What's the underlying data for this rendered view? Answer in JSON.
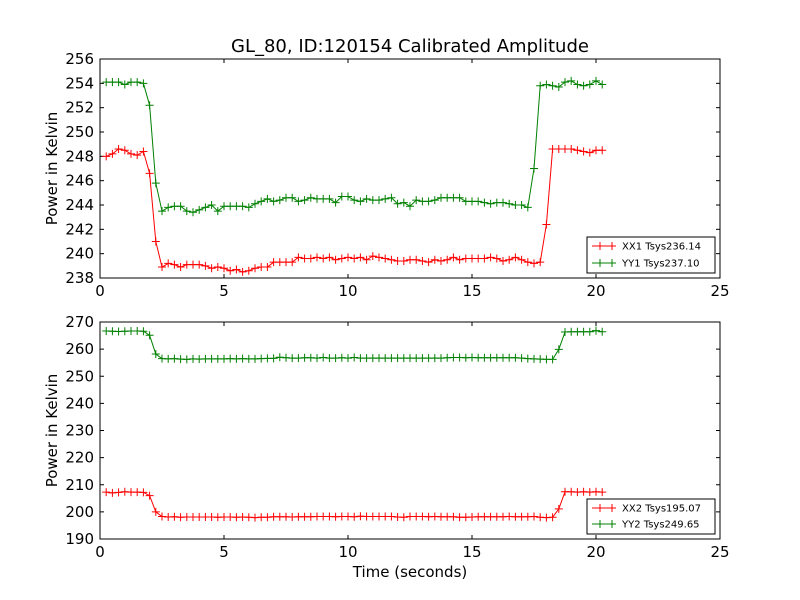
{
  "chart_data": [
    {
      "type": "line",
      "title": "GL_80, ID:120154 Calibrated Amplitude",
      "xlabel": "",
      "ylabel": "Power in Kelvin",
      "xlim": [
        0,
        25
      ],
      "ylim": [
        238,
        256
      ],
      "xticks": [
        0,
        5,
        10,
        15,
        20,
        25
      ],
      "yticks": [
        238,
        240,
        242,
        244,
        246,
        248,
        250,
        252,
        254,
        256
      ],
      "grid": false,
      "legend_position": "lower-right",
      "series": [
        {
          "name": "XX1 Tsys236.14",
          "color": "#ff0000",
          "x": [
            0.25,
            0.5,
            0.75,
            1.0,
            1.25,
            1.5,
            1.75,
            2.0,
            2.25,
            2.5,
            2.75,
            3.0,
            3.25,
            3.5,
            3.75,
            4.0,
            4.25,
            4.5,
            4.75,
            5.0,
            5.25,
            5.5,
            5.75,
            6.0,
            6.25,
            6.5,
            6.75,
            7.0,
            7.25,
            7.5,
            7.75,
            8.0,
            8.25,
            8.5,
            8.75,
            9.0,
            9.25,
            9.5,
            9.75,
            10.0,
            10.25,
            10.5,
            10.75,
            11.0,
            11.25,
            11.5,
            11.75,
            12.0,
            12.25,
            12.5,
            12.75,
            13.0,
            13.25,
            13.5,
            13.75,
            14.0,
            14.25,
            14.5,
            14.75,
            15.0,
            15.25,
            15.5,
            15.75,
            16.0,
            16.25,
            16.5,
            16.75,
            17.0,
            17.25,
            17.5,
            17.75,
            18.0,
            18.25,
            18.5,
            18.75,
            19.0,
            19.25,
            19.5,
            19.75,
            20.0,
            20.25
          ],
          "y": [
            248.0,
            248.2,
            248.6,
            248.5,
            248.2,
            248.1,
            248.4,
            246.6,
            241.0,
            238.9,
            239.2,
            239.1,
            238.9,
            239.1,
            239.1,
            239.1,
            239.0,
            238.8,
            238.9,
            238.8,
            238.6,
            238.7,
            238.5,
            238.6,
            238.8,
            238.9,
            238.9,
            239.3,
            239.3,
            239.3,
            239.3,
            239.7,
            239.6,
            239.6,
            239.7,
            239.6,
            239.7,
            239.5,
            239.6,
            239.7,
            239.6,
            239.7,
            239.5,
            239.8,
            239.7,
            239.6,
            239.5,
            239.4,
            239.4,
            239.5,
            239.5,
            239.4,
            239.3,
            239.5,
            239.4,
            239.5,
            239.7,
            239.5,
            239.6,
            239.6,
            239.6,
            239.6,
            239.7,
            239.6,
            239.4,
            239.5,
            239.7,
            239.5,
            239.3,
            239.2,
            239.3,
            242.4,
            248.6,
            248.6,
            248.6,
            248.6,
            248.5,
            248.4,
            248.3,
            248.5,
            248.5
          ]
        },
        {
          "name": "YY1 Tsys237.10",
          "color": "#008000",
          "x": [
            0.25,
            0.5,
            0.75,
            1.0,
            1.25,
            1.5,
            1.75,
            2.0,
            2.25,
            2.5,
            2.75,
            3.0,
            3.25,
            3.5,
            3.75,
            4.0,
            4.25,
            4.5,
            4.75,
            5.0,
            5.25,
            5.5,
            5.75,
            6.0,
            6.25,
            6.5,
            6.75,
            7.0,
            7.25,
            7.5,
            7.75,
            8.0,
            8.25,
            8.5,
            8.75,
            9.0,
            9.25,
            9.5,
            9.75,
            10.0,
            10.25,
            10.5,
            10.75,
            11.0,
            11.25,
            11.5,
            11.75,
            12.0,
            12.25,
            12.5,
            12.75,
            13.0,
            13.25,
            13.5,
            13.75,
            14.0,
            14.25,
            14.5,
            14.75,
            15.0,
            15.25,
            15.5,
            15.75,
            16.0,
            16.25,
            16.5,
            16.75,
            17.0,
            17.25,
            17.5,
            17.75,
            18.0,
            18.25,
            18.5,
            18.75,
            19.0,
            19.25,
            19.5,
            19.75,
            20.0,
            20.25
          ],
          "y": [
            254.1,
            254.1,
            254.1,
            253.9,
            254.1,
            254.1,
            254.0,
            252.2,
            245.8,
            243.5,
            243.8,
            243.9,
            243.9,
            243.5,
            243.4,
            243.6,
            243.8,
            244.0,
            243.5,
            243.9,
            243.9,
            243.9,
            243.9,
            243.8,
            244.1,
            244.3,
            244.5,
            244.3,
            244.4,
            244.6,
            244.6,
            244.3,
            244.4,
            244.6,
            244.5,
            244.5,
            244.5,
            244.2,
            244.7,
            244.7,
            244.4,
            244.3,
            244.5,
            244.4,
            244.4,
            244.5,
            244.6,
            244.1,
            244.2,
            243.9,
            244.4,
            244.3,
            244.3,
            244.4,
            244.6,
            244.6,
            244.6,
            244.6,
            244.3,
            244.3,
            244.3,
            244.2,
            244.1,
            244.2,
            244.2,
            244.1,
            244.0,
            244.0,
            243.8,
            247.0,
            253.8,
            253.9,
            253.8,
            253.7,
            254.1,
            254.2,
            253.9,
            253.8,
            253.9,
            254.2,
            253.9
          ]
        }
      ]
    },
    {
      "type": "line",
      "title": "",
      "xlabel": "Time (seconds)",
      "ylabel": "Power in Kelvin",
      "xlim": [
        0,
        25
      ],
      "ylim": [
        190,
        270
      ],
      "xticks": [
        0,
        5,
        10,
        15,
        20,
        25
      ],
      "yticks": [
        190,
        200,
        210,
        220,
        230,
        240,
        250,
        260,
        270
      ],
      "grid": false,
      "legend_position": "lower-right",
      "series": [
        {
          "name": "XX2 Tsys195.07",
          "color": "#ff0000",
          "x": [
            0.25,
            0.5,
            0.75,
            1.0,
            1.25,
            1.5,
            1.75,
            2.0,
            2.25,
            2.5,
            2.75,
            3.0,
            3.25,
            3.5,
            3.75,
            4.0,
            4.25,
            4.5,
            4.75,
            5.0,
            5.25,
            5.5,
            5.75,
            6.0,
            6.25,
            6.5,
            6.75,
            7.0,
            7.25,
            7.5,
            7.75,
            8.0,
            8.25,
            8.5,
            8.75,
            9.0,
            9.25,
            9.5,
            9.75,
            10.0,
            10.25,
            10.5,
            10.75,
            11.0,
            11.25,
            11.5,
            11.75,
            12.0,
            12.25,
            12.5,
            12.75,
            13.0,
            13.25,
            13.5,
            13.75,
            14.0,
            14.25,
            14.5,
            14.75,
            15.0,
            15.25,
            15.5,
            15.75,
            16.0,
            16.25,
            16.5,
            16.75,
            17.0,
            17.25,
            17.5,
            17.75,
            18.0,
            18.25,
            18.5,
            18.75,
            19.0,
            19.25,
            19.5,
            19.75,
            20.0,
            20.25
          ],
          "y": [
            207.3,
            207.0,
            207.2,
            207.4,
            207.3,
            207.3,
            207.2,
            206.0,
            200.0,
            198.3,
            198.1,
            198.2,
            198.0,
            198.1,
            198.1,
            198.1,
            198.1,
            198.1,
            198.0,
            198.1,
            198.1,
            198.0,
            198.1,
            198.0,
            197.9,
            198.0,
            198.0,
            198.2,
            198.2,
            198.2,
            198.1,
            198.2,
            198.2,
            198.2,
            198.3,
            198.3,
            198.3,
            198.2,
            198.3,
            198.3,
            198.2,
            198.4,
            198.3,
            198.3,
            198.3,
            198.3,
            198.3,
            198.1,
            198.0,
            198.3,
            198.3,
            198.3,
            198.2,
            198.3,
            198.2,
            198.2,
            198.2,
            198.0,
            198.0,
            198.1,
            198.2,
            198.2,
            198.2,
            198.2,
            198.2,
            198.3,
            198.2,
            198.2,
            198.2,
            198.3,
            198.0,
            197.9,
            198.0,
            201.1,
            207.4,
            207.4,
            207.3,
            207.4,
            207.3,
            207.4,
            207.3
          ]
        },
        {
          "name": "YY2 Tsys249.65",
          "color": "#008000",
          "x": [
            0.25,
            0.5,
            0.75,
            1.0,
            1.25,
            1.5,
            1.75,
            2.0,
            2.25,
            2.5,
            2.75,
            3.0,
            3.25,
            3.5,
            3.75,
            4.0,
            4.25,
            4.5,
            4.75,
            5.0,
            5.25,
            5.5,
            5.75,
            6.0,
            6.25,
            6.5,
            6.75,
            7.0,
            7.25,
            7.5,
            7.75,
            8.0,
            8.25,
            8.5,
            8.75,
            9.0,
            9.25,
            9.5,
            9.75,
            10.0,
            10.25,
            10.5,
            10.75,
            11.0,
            11.25,
            11.5,
            11.75,
            12.0,
            12.25,
            12.5,
            12.75,
            13.0,
            13.25,
            13.5,
            13.75,
            14.0,
            14.25,
            14.5,
            14.75,
            15.0,
            15.25,
            15.5,
            15.75,
            16.0,
            16.25,
            16.5,
            16.75,
            17.0,
            17.25,
            17.5,
            17.75,
            18.0,
            18.25,
            18.5,
            18.75,
            19.0,
            19.25,
            19.5,
            19.75,
            20.0,
            20.25
          ],
          "y": [
            266.7,
            266.6,
            266.5,
            266.6,
            266.7,
            266.7,
            266.6,
            265.1,
            258.2,
            256.5,
            256.4,
            256.5,
            256.3,
            256.2,
            256.4,
            256.3,
            256.4,
            256.4,
            256.4,
            256.4,
            256.5,
            256.4,
            256.5,
            256.4,
            256.4,
            256.5,
            256.6,
            256.6,
            257.0,
            256.8,
            256.7,
            256.7,
            256.8,
            256.8,
            256.7,
            256.9,
            256.7,
            256.7,
            256.8,
            256.7,
            256.9,
            256.7,
            256.7,
            256.7,
            256.7,
            256.7,
            256.7,
            256.7,
            256.7,
            256.7,
            256.7,
            256.7,
            256.7,
            256.7,
            256.7,
            256.8,
            256.9,
            256.9,
            256.8,
            256.9,
            256.8,
            256.8,
            256.8,
            256.8,
            256.8,
            256.8,
            256.8,
            256.7,
            256.5,
            256.4,
            256.3,
            256.2,
            256.2,
            259.9,
            266.3,
            266.4,
            266.4,
            266.4,
            266.4,
            266.8,
            266.4
          ]
        }
      ]
    }
  ]
}
